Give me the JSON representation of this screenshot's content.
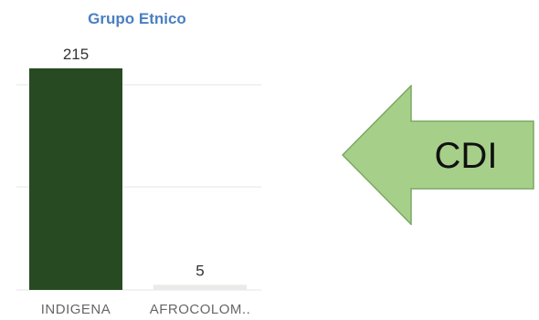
{
  "chart_data": {
    "type": "bar",
    "title": "Grupo Etnico",
    "categories": [
      "INDIGENA",
      "AFROCOLOM.."
    ],
    "values": [
      215,
      5
    ],
    "ylim": [
      0,
      215
    ],
    "grid": true,
    "colors": {
      "bar_0": "#274a22",
      "bar_1": "#e9ebe7",
      "title": "#4a7fc1"
    }
  },
  "callout": {
    "label": "CDI",
    "fill": "#a6d08a",
    "stroke": "#7aa862"
  }
}
